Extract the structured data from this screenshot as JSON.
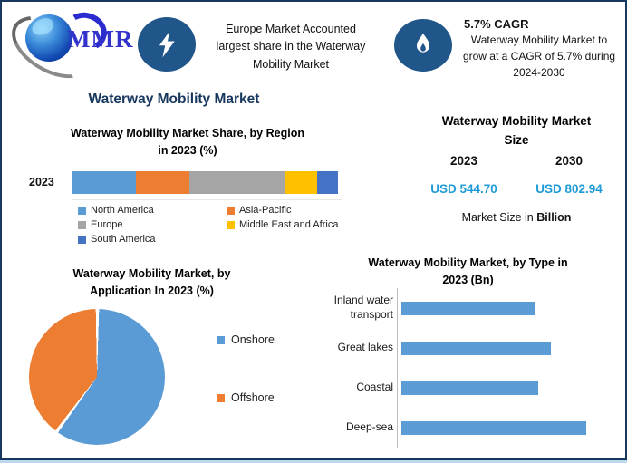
{
  "page": {
    "border_color": "#17375E"
  },
  "header": {
    "logo": {
      "text": "MMR",
      "text_color": "#3232CC"
    },
    "icon_bg": "#21568A",
    "highlight_left": {
      "icon": "lightning-icon",
      "text": "Europe Market Accounted\nlargest share in the Waterway\nMobility Market"
    },
    "highlight_right": {
      "icon": "flame-icon",
      "title": "5.7% CAGR",
      "text": "Waterway Mobility Market to\ngrow at a CAGR of 5.7% during\n2024-2030"
    }
  },
  "main_title": "Waterway Mobility Market",
  "market_size": {
    "title": "Waterway Mobility Market\nSize",
    "columns": [
      {
        "year": "2023",
        "value": "USD 544.70"
      },
      {
        "year": "2030",
        "value": "USD 802.94"
      }
    ],
    "note_prefix": "Market Size in ",
    "note_bold": "Billion",
    "value_color": "#1E9BD7"
  },
  "chart_data": [
    {
      "id": "region_share",
      "type": "bar",
      "subtype": "stacked-horizontal",
      "title": "Waterway Mobility Market Share, by Region\nin 2023 (%)",
      "categories": [
        "2023"
      ],
      "unit": "%",
      "legend_position": "bottom",
      "series": [
        {
          "name": "North America",
          "color": "#5B9BD5",
          "value": 24
        },
        {
          "name": "Asia-Pacific",
          "color": "#ED7D31",
          "value": 20
        },
        {
          "name": "Europe",
          "color": "#A5A5A5",
          "value": 36
        },
        {
          "name": "Middle East and Africa",
          "color": "#FFC000",
          "value": 12
        },
        {
          "name": "South America",
          "color": "#4472C4",
          "value": 8
        }
      ]
    },
    {
      "id": "application_share",
      "type": "pie",
      "title": "Waterway Mobility Market, by\nApplication In 2023 (%)",
      "unit": "%",
      "start_angle_deg": 0,
      "legend_position": "right",
      "slices": [
        {
          "name": "Onshore",
          "color": "#5B9BD5",
          "value": 60
        },
        {
          "name": "Offshore",
          "color": "#ED7D31",
          "value": 40
        }
      ]
    },
    {
      "id": "type_size",
      "type": "bar",
      "subtype": "horizontal",
      "title": "Waterway Mobility Market, by Type in\n2023 (Bn)",
      "unit": "Bn",
      "bar_color": "#5B9BD5",
      "categories": [
        "Inland water transport",
        "Great lakes",
        "Coastal",
        "Deep-sea"
      ],
      "values_relative_pct_of_max": [
        72,
        81,
        74,
        100
      ]
    }
  ]
}
